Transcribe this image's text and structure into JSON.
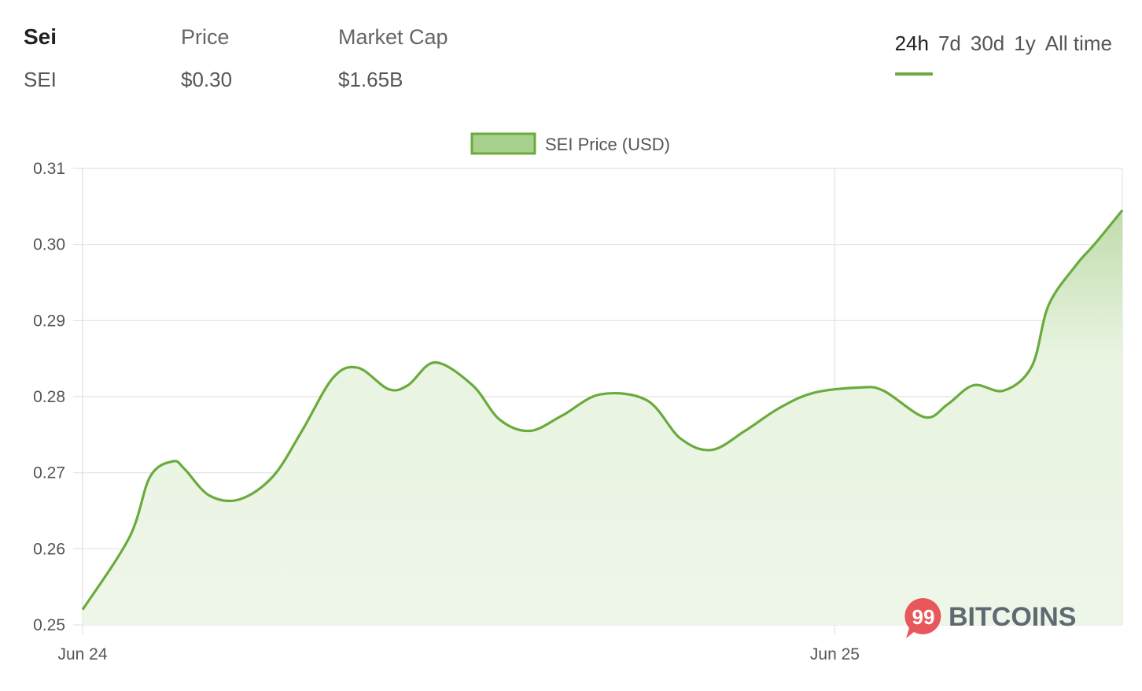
{
  "header": {
    "coin_name": "Sei",
    "coin_symbol": "SEI",
    "price_label": "Price",
    "price_value": "$0.30",
    "mcap_label": "Market Cap",
    "mcap_value": "$1.65B"
  },
  "time_ranges": [
    {
      "label": "24h",
      "active": true
    },
    {
      "label": "7d",
      "active": false
    },
    {
      "label": "30d",
      "active": false
    },
    {
      "label": "1y",
      "active": false
    },
    {
      "label": "All time",
      "active": false
    }
  ],
  "watermark": {
    "badge": "99",
    "text": "BITCOINS"
  },
  "colors": {
    "line": "#6aab3e",
    "fill": "#eef6e8",
    "grid": "#e2e2e2",
    "badge": "#e8575b",
    "watermark_text": "#5d6a73"
  },
  "chart_data": {
    "type": "area",
    "title": "",
    "legend": [
      "SEI Price (USD)"
    ],
    "legend_position": "top-center",
    "xlabel": "",
    "ylabel": "",
    "x_ticks": [
      {
        "label": "Jun 24",
        "x": 0
      },
      {
        "label": "Jun 25",
        "x": 0.7235
      }
    ],
    "ylim": [
      0.25,
      0.31
    ],
    "y_ticks": [
      0.25,
      0.26,
      0.27,
      0.28,
      0.29,
      0.3,
      0.31
    ],
    "grid": true,
    "series": [
      {
        "name": "SEI Price (USD)",
        "x": [
          0,
          0.045,
          0.065,
          0.087,
          0.098,
          0.122,
          0.151,
          0.183,
          0.211,
          0.241,
          0.265,
          0.294,
          0.313,
          0.339,
          0.375,
          0.401,
          0.43,
          0.461,
          0.498,
          0.543,
          0.575,
          0.605,
          0.637,
          0.67,
          0.703,
          0.747,
          0.77,
          0.81,
          0.832,
          0.857,
          0.886,
          0.913,
          0.929,
          0.955,
          0.973,
          1.0
        ],
        "y": [
          0.252,
          0.2615,
          0.2695,
          0.2715,
          0.2705,
          0.267,
          0.2665,
          0.2695,
          0.2755,
          0.2825,
          0.2838,
          0.281,
          0.2815,
          0.2845,
          0.2815,
          0.277,
          0.2755,
          0.2775,
          0.2803,
          0.2795,
          0.2745,
          0.273,
          0.2755,
          0.2785,
          0.2805,
          0.2812,
          0.2808,
          0.2773,
          0.279,
          0.2815,
          0.2808,
          0.284,
          0.292,
          0.2972,
          0.3,
          0.3045
        ]
      }
    ]
  }
}
